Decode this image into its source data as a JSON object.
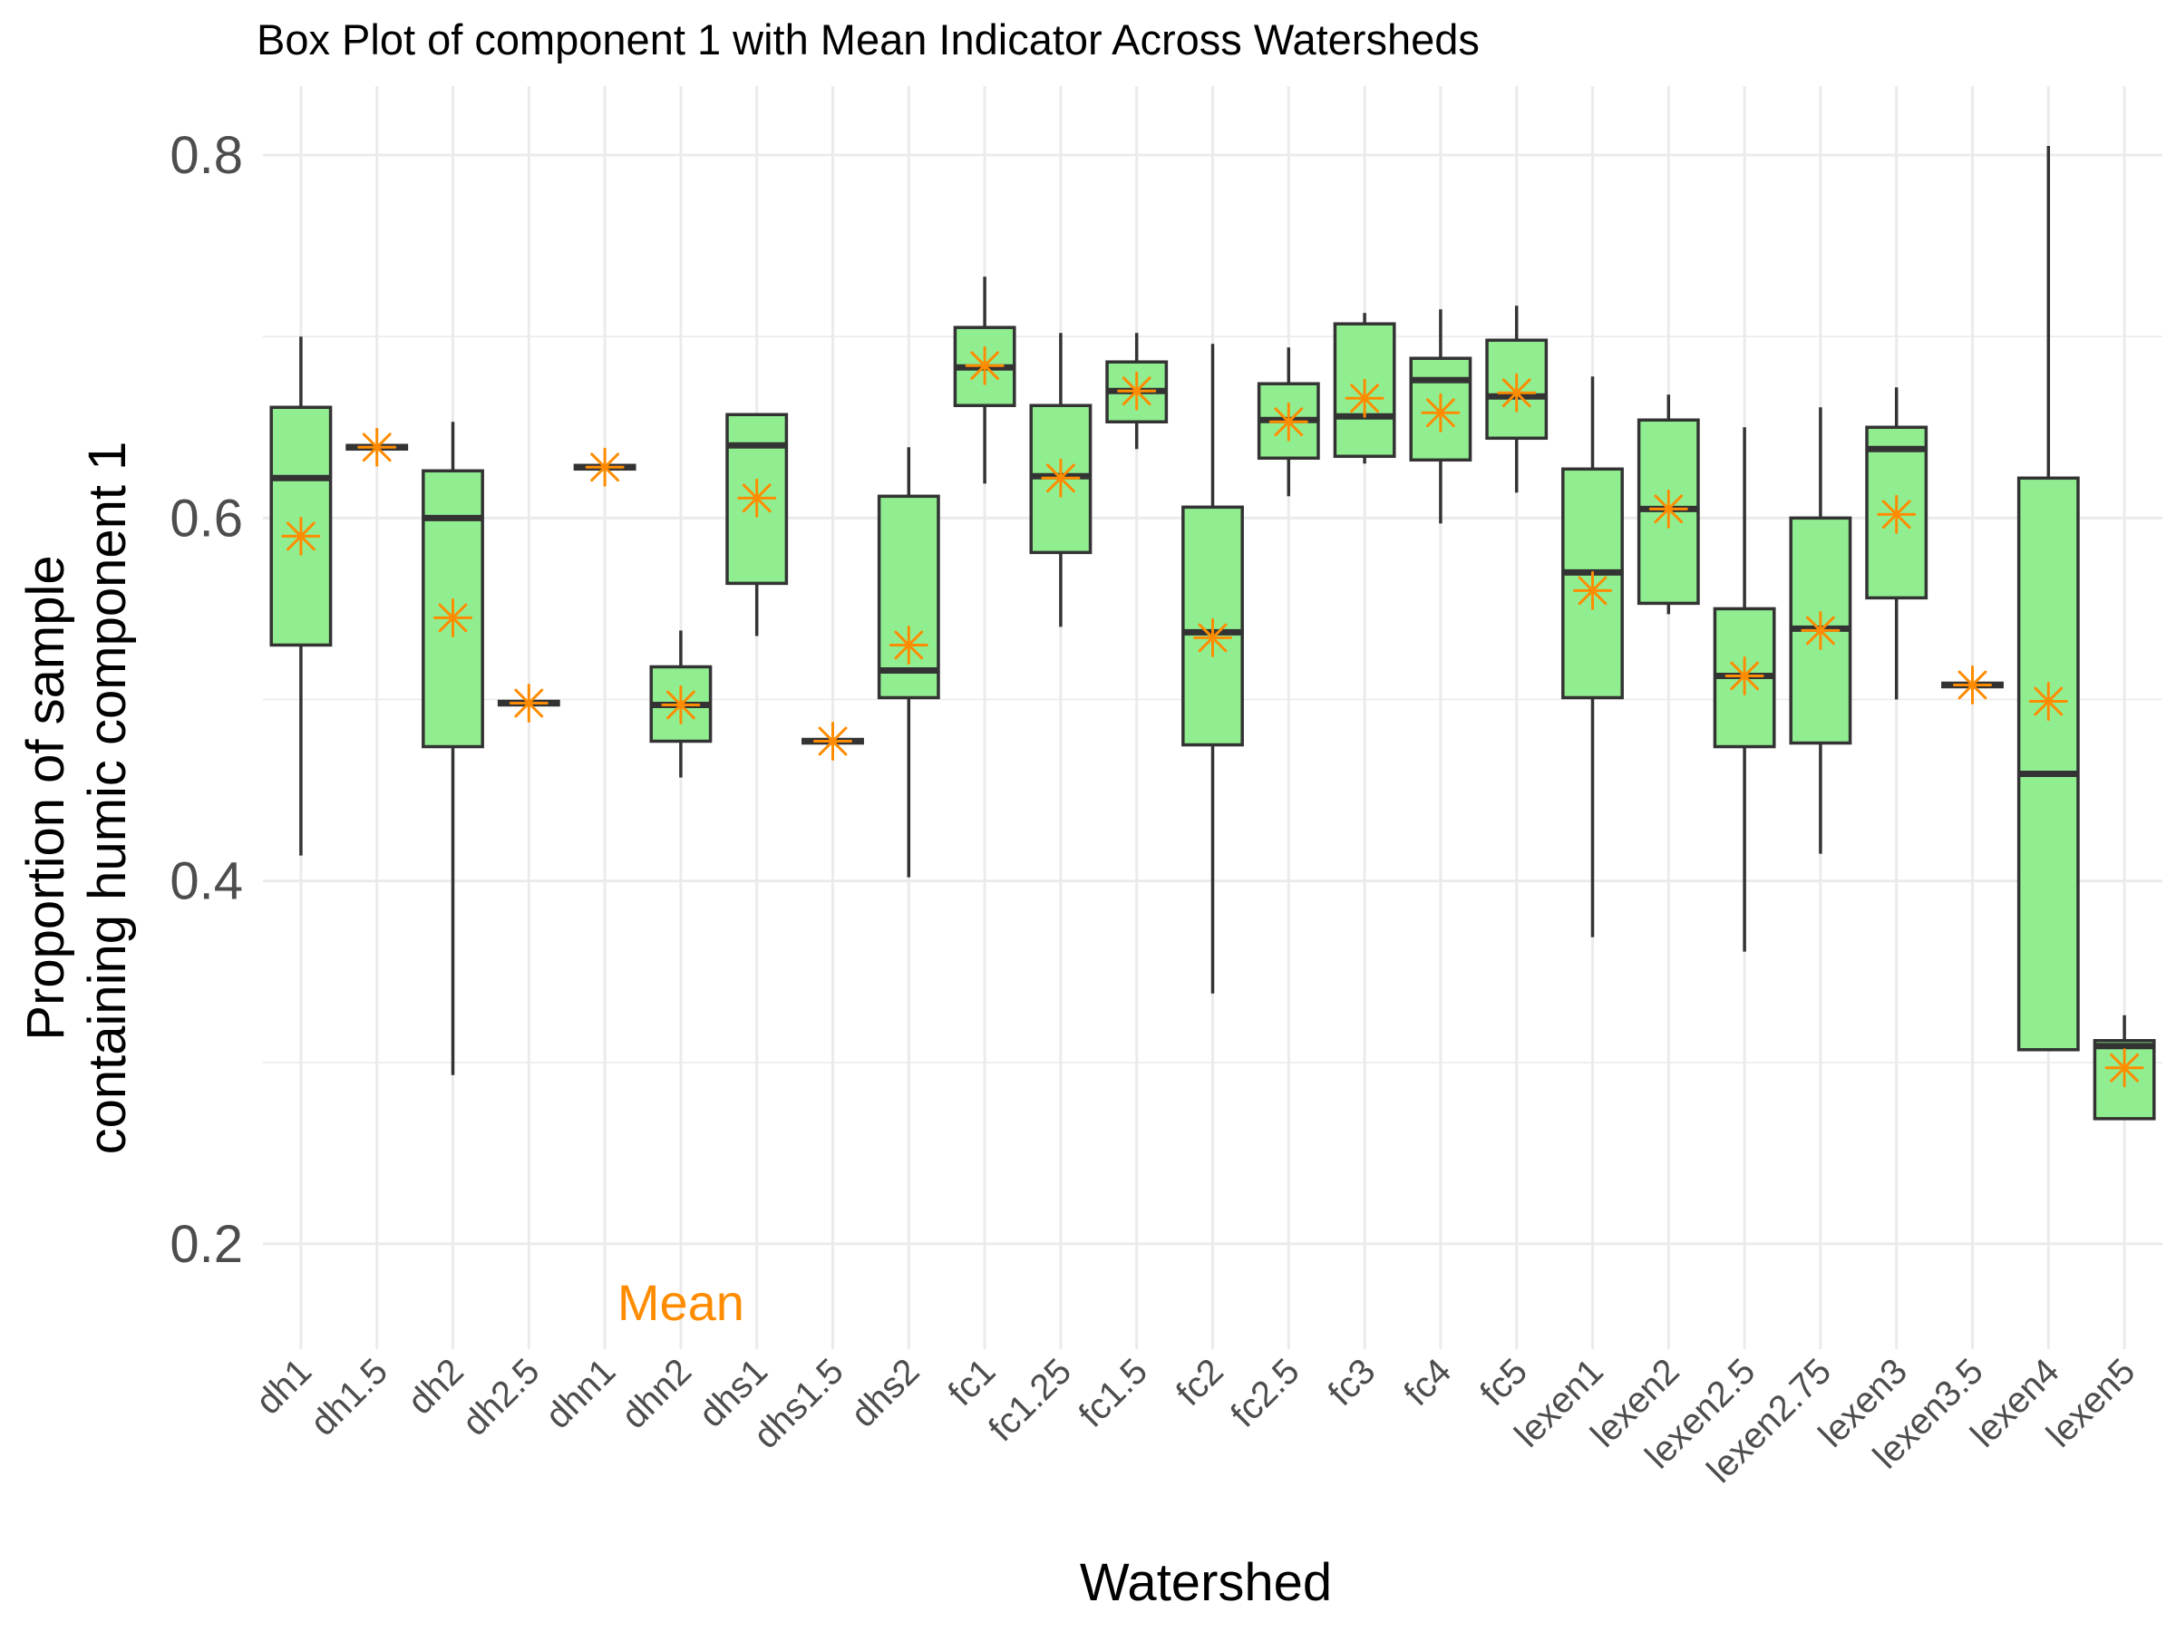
{
  "chart_data": {
    "type": "box",
    "title": "Box Plot of component 1 with Mean Indicator Across Watersheds",
    "xlabel": "Watershed",
    "ylabel_lines": [
      "Proportion of sample",
      "containing humic component 1"
    ],
    "ylim": [
      0.142,
      0.838
    ],
    "y_ticks": [
      0.2,
      0.4,
      0.6,
      0.8
    ],
    "y_tick_labels": [
      "0.2",
      "0.4",
      "0.6",
      "0.8"
    ],
    "grid": true,
    "box_fill": "#90ee90",
    "box_stroke": "#333333",
    "mean_color": "#ff8c00",
    "mean_marker": "asterisk",
    "annotation": {
      "text": "Mean",
      "x_category": "dhn2",
      "y": 0.168,
      "color": "#ff8c00"
    },
    "categories": [
      "dh1",
      "dh1.5",
      "dh2",
      "dh2.5",
      "dhn1",
      "dhn2",
      "dhs1",
      "dhs1.5",
      "dhs2",
      "fc1",
      "fc1.25",
      "fc1.5",
      "fc2",
      "fc2.5",
      "fc3",
      "fc4",
      "fc5",
      "lexen1",
      "lexen2",
      "lexen2.5",
      "lexen2.75",
      "lexen3",
      "lexen3.5",
      "lexen4",
      "lexen5"
    ],
    "boxes": [
      {
        "min": 0.414,
        "q1": 0.53,
        "median": 0.622,
        "q3": 0.661,
        "max": 0.7,
        "mean": 0.59
      },
      {
        "min": 0.638,
        "q1": 0.638,
        "median": 0.639,
        "q3": 0.64,
        "max": 0.64,
        "mean": 0.639
      },
      {
        "min": 0.293,
        "q1": 0.474,
        "median": 0.6,
        "q3": 0.626,
        "max": 0.653,
        "mean": 0.545
      },
      {
        "min": 0.497,
        "q1": 0.497,
        "median": 0.498,
        "q3": 0.499,
        "max": 0.499,
        "mean": 0.498
      },
      {
        "min": 0.627,
        "q1": 0.627,
        "median": 0.628,
        "q3": 0.629,
        "max": 0.629,
        "mean": 0.628
      },
      {
        "min": 0.457,
        "q1": 0.477,
        "median": 0.497,
        "q3": 0.518,
        "max": 0.538,
        "mean": 0.497
      },
      {
        "min": 0.535,
        "q1": 0.564,
        "median": 0.64,
        "q3": 0.657,
        "max": 0.657,
        "mean": 0.611
      },
      {
        "min": 0.476,
        "q1": 0.476,
        "median": 0.477,
        "q3": 0.478,
        "max": 0.478,
        "mean": 0.477
      },
      {
        "min": 0.402,
        "q1": 0.501,
        "median": 0.516,
        "q3": 0.612,
        "max": 0.639,
        "mean": 0.53
      },
      {
        "min": 0.619,
        "q1": 0.662,
        "median": 0.683,
        "q3": 0.705,
        "max": 0.733,
        "mean": 0.684
      },
      {
        "min": 0.54,
        "q1": 0.581,
        "median": 0.623,
        "q3": 0.662,
        "max": 0.702,
        "mean": 0.622
      },
      {
        "min": 0.638,
        "q1": 0.653,
        "median": 0.67,
        "q3": 0.686,
        "max": 0.702,
        "mean": 0.67
      },
      {
        "min": 0.338,
        "q1": 0.475,
        "median": 0.537,
        "q3": 0.606,
        "max": 0.696,
        "mean": 0.534
      },
      {
        "min": 0.612,
        "q1": 0.633,
        "median": 0.654,
        "q3": 0.674,
        "max": 0.694,
        "mean": 0.653
      },
      {
        "min": 0.63,
        "q1": 0.634,
        "median": 0.656,
        "q3": 0.707,
        "max": 0.713,
        "mean": 0.666
      },
      {
        "min": 0.597,
        "q1": 0.632,
        "median": 0.676,
        "q3": 0.688,
        "max": 0.715,
        "mean": 0.658
      },
      {
        "min": 0.614,
        "q1": 0.644,
        "median": 0.667,
        "q3": 0.698,
        "max": 0.717,
        "mean": 0.669
      },
      {
        "min": 0.369,
        "q1": 0.501,
        "median": 0.57,
        "q3": 0.627,
        "max": 0.678,
        "mean": 0.56
      },
      {
        "min": 0.547,
        "q1": 0.553,
        "median": 0.605,
        "q3": 0.654,
        "max": 0.668,
        "mean": 0.605
      },
      {
        "min": 0.361,
        "q1": 0.474,
        "median": 0.513,
        "q3": 0.55,
        "max": 0.65,
        "mean": 0.513
      },
      {
        "min": 0.415,
        "q1": 0.476,
        "median": 0.539,
        "q3": 0.6,
        "max": 0.661,
        "mean": 0.538
      },
      {
        "min": 0.5,
        "q1": 0.556,
        "median": 0.638,
        "q3": 0.65,
        "max": 0.672,
        "mean": 0.602
      },
      {
        "min": 0.507,
        "q1": 0.507,
        "median": 0.508,
        "q3": 0.509,
        "max": 0.509,
        "mean": 0.508
      },
      {
        "min": 0.307,
        "q1": 0.307,
        "median": 0.459,
        "q3": 0.622,
        "max": 0.805,
        "mean": 0.499
      },
      {
        "min": 0.269,
        "q1": 0.269,
        "median": 0.309,
        "q3": 0.312,
        "max": 0.326,
        "mean": 0.297
      }
    ]
  }
}
